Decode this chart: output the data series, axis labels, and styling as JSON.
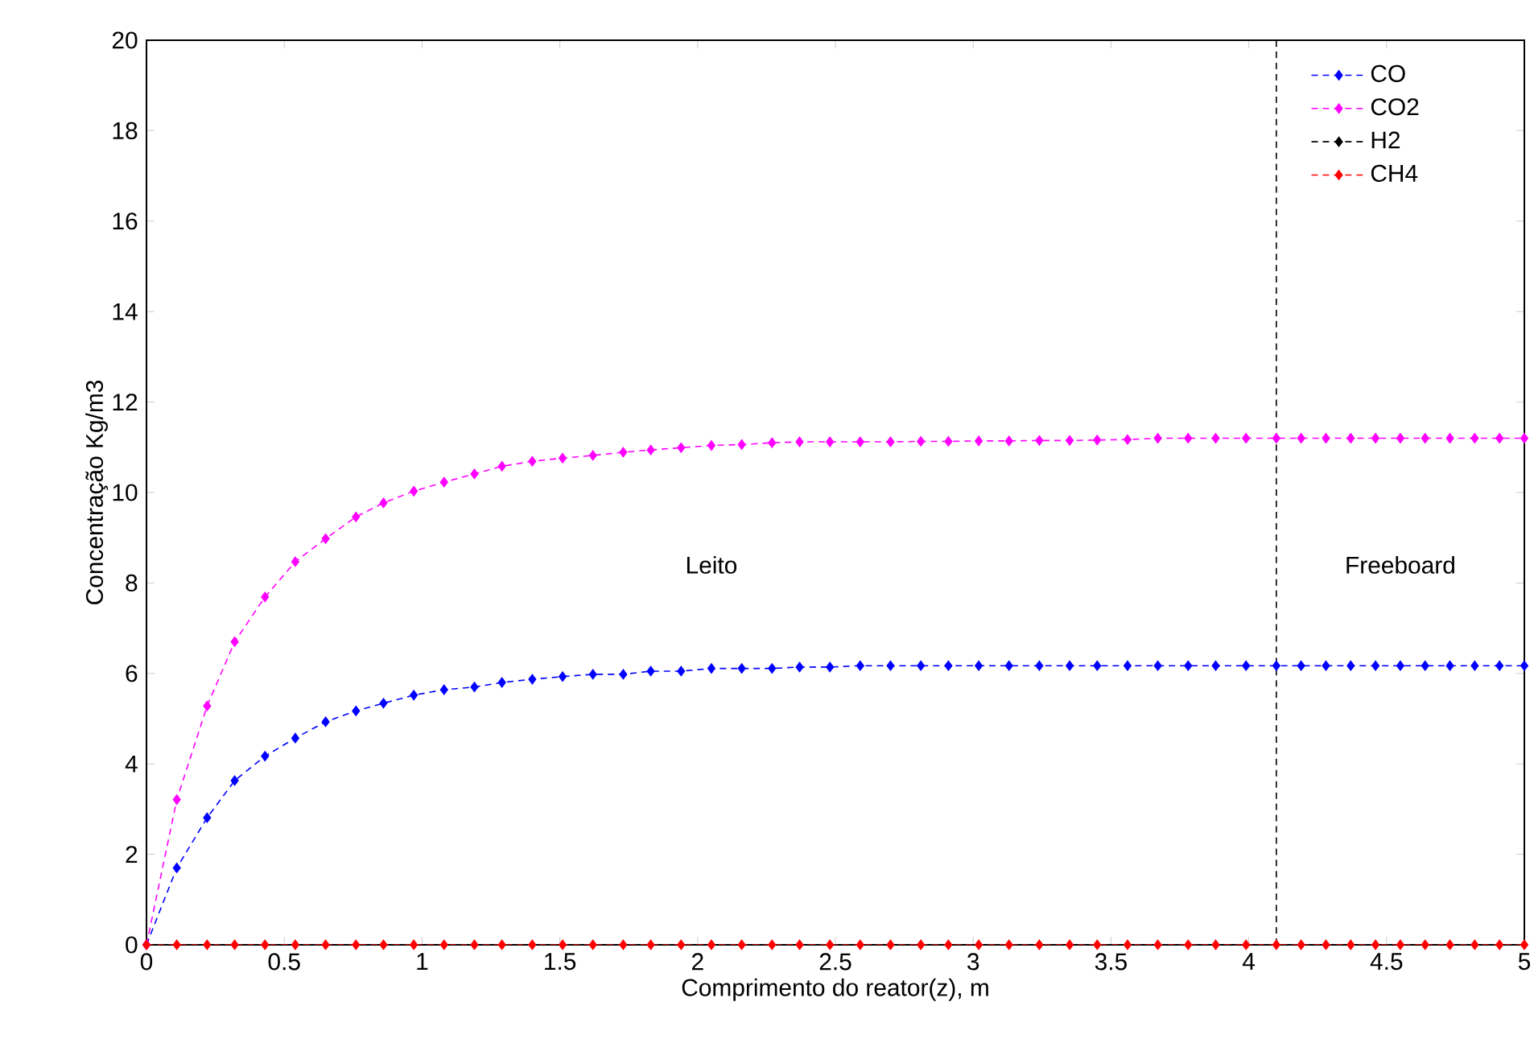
{
  "chart_data": {
    "type": "line",
    "xlabel": "Comprimento do reator(z), m",
    "ylabel": "Concentração Kg/m3",
    "x": [
      0,
      0.11,
      0.22,
      0.32,
      0.43,
      0.54,
      0.65,
      0.76,
      0.86,
      0.97,
      1.08,
      1.19,
      1.29,
      1.4,
      1.51,
      1.62,
      1.73,
      1.83,
      1.94,
      2.05,
      2.16,
      2.27,
      2.37,
      2.48,
      2.59,
      2.7,
      2.81,
      2.91,
      3.02,
      3.13,
      3.24,
      3.35,
      3.45,
      3.56,
      3.67,
      3.78,
      3.88,
      3.99,
      4.1,
      4.19,
      4.28,
      4.37,
      4.46,
      4.55,
      4.64,
      4.73,
      4.82,
      4.91,
      5
    ],
    "series": [
      {
        "name": "CO",
        "color": "#0000ff",
        "values": [
          0,
          1.7,
          2.81,
          3.63,
          4.17,
          4.57,
          4.93,
          5.17,
          5.34,
          5.52,
          5.64,
          5.7,
          5.8,
          5.87,
          5.93,
          5.98,
          5.98,
          6.05,
          6.05,
          6.11,
          6.11,
          6.11,
          6.14,
          6.14,
          6.17,
          6.17,
          6.17,
          6.17,
          6.17,
          6.17,
          6.17,
          6.17,
          6.17,
          6.17,
          6.17,
          6.17,
          6.17,
          6.17,
          6.17,
          6.17,
          6.17,
          6.17,
          6.17,
          6.17,
          6.17,
          6.17,
          6.17,
          6.17,
          6.17
        ]
      },
      {
        "name": "CO2",
        "color": "#ff00ff",
        "values": [
          0,
          3.21,
          5.28,
          6.7,
          7.69,
          8.47,
          8.98,
          9.46,
          9.77,
          10.03,
          10.23,
          10.41,
          10.58,
          10.69,
          10.76,
          10.82,
          10.89,
          10.94,
          10.99,
          11.04,
          11.06,
          11.1,
          11.12,
          11.12,
          11.12,
          11.12,
          11.13,
          11.13,
          11.14,
          11.14,
          11.15,
          11.15,
          11.16,
          11.17,
          11.2,
          11.2,
          11.2,
          11.2,
          11.2,
          11.2,
          11.2,
          11.2,
          11.2,
          11.2,
          11.2,
          11.2,
          11.2,
          11.2,
          11.2
        ]
      },
      {
        "name": "H2",
        "color": "#000000",
        "values": [
          null,
          null,
          null,
          null,
          null,
          null,
          null,
          null,
          null,
          null,
          null,
          null,
          null,
          null,
          null,
          null,
          null,
          null,
          null,
          null,
          null,
          null,
          null,
          null,
          null,
          null,
          null,
          null,
          null,
          null,
          null,
          null,
          null,
          null,
          null,
          null,
          null,
          null,
          null,
          null,
          null,
          null,
          null,
          null,
          null,
          null,
          null,
          null,
          null
        ]
      },
      {
        "name": "CH4",
        "color": "#ff0000",
        "values": [
          0,
          0,
          0,
          0,
          0,
          0,
          0,
          0,
          0,
          0,
          0,
          0,
          0,
          0,
          0,
          0,
          0,
          0,
          0,
          0,
          0,
          0,
          0,
          0,
          0,
          0,
          0,
          0,
          0,
          0,
          0,
          0,
          0,
          0,
          0,
          0,
          0,
          0,
          0,
          0,
          0,
          0,
          0,
          0,
          0,
          0,
          0,
          0,
          0
        ]
      }
    ],
    "xlim": [
      0,
      5
    ],
    "xticks": [
      0,
      0.5,
      1,
      1.5,
      2,
      2.5,
      3,
      3.5,
      4,
      4.5,
      5
    ],
    "ylim": [
      0,
      20
    ],
    "yticks": [
      0,
      2,
      4,
      6,
      8,
      10,
      12,
      14,
      16,
      18,
      20
    ],
    "ref_lines": [
      {
        "axis": "x",
        "value": 4.1,
        "color": "#000000",
        "line_style": "dashed"
      }
    ],
    "annotations": [
      "Leito",
      "Freeboard"
    ],
    "legend": "top right",
    "marker": "diamond",
    "line_style": "dashed",
    "grid": false
  }
}
